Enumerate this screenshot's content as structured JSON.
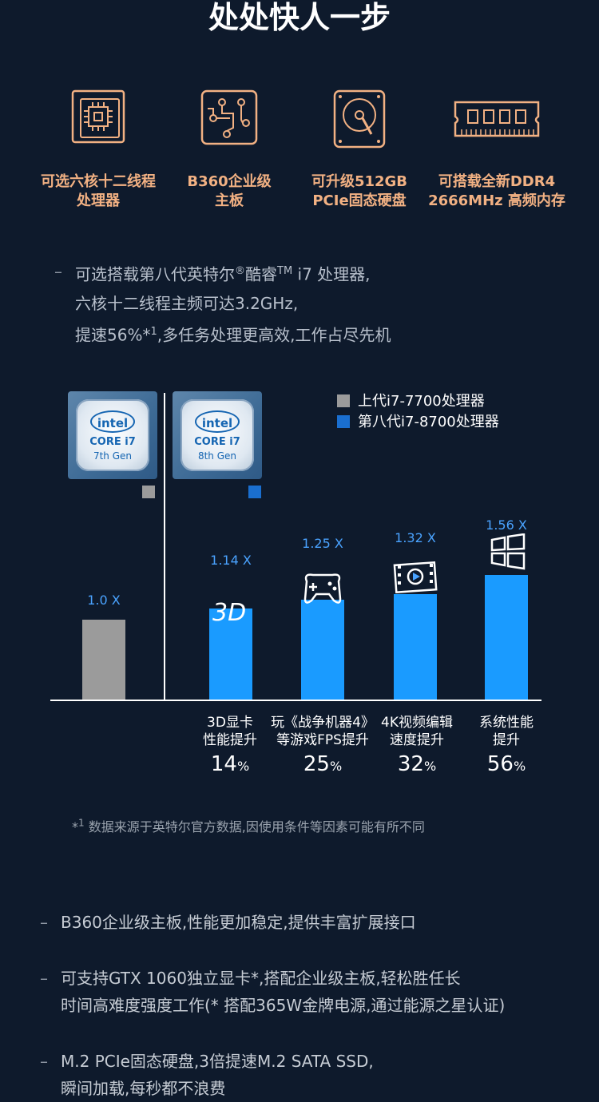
{
  "page_title": "处处快人一步",
  "features": [
    {
      "icon": "cpu-icon",
      "line1": "可选六核十二线程",
      "line2": "处理器"
    },
    {
      "icon": "motherboard-icon",
      "line1": "B360企业级",
      "line2": "主板"
    },
    {
      "icon": "hard-disk-icon",
      "line1": "可升级512GB",
      "line2": "PCIe固态硬盘"
    },
    {
      "icon": "ram-icon",
      "line1": "可搭载全新DDR4",
      "line2": "2666MHz 高频内存"
    }
  ],
  "processor_desc": {
    "dash": "–",
    "line1_a": "可选搭载第八代英特尔",
    "line1_reg": "®",
    "line1_b": "酷睿",
    "line1_tm": "TM",
    "line1_c": " i7 处理器,",
    "line2": "六核十二线程主频可达3.2GHz,",
    "line3_a": "提速56%*",
    "line3_sup": "1",
    "line3_b": ",多任务处理更高效,工作占尽先机"
  },
  "chips": [
    {
      "brand": "intel",
      "core": "CORE i7",
      "gen": "7th Gen"
    },
    {
      "brand": "intel",
      "core": "CORE i7",
      "gen": "8th Gen"
    }
  ],
  "legend": [
    {
      "label": "上代i7-7700处理器",
      "color": "#9b9b9b"
    },
    {
      "label": "第八代i7-8700处理器",
      "color": "#1a6fd0"
    }
  ],
  "chart_data": {
    "type": "bar",
    "categories": [
      "",
      "3D显卡性能提升",
      "玩《战争机器4》等游戏FPS提升",
      "4K视频编辑速度提升",
      "系统性能提升"
    ],
    "values": [
      1.0,
      1.14,
      1.25,
      1.32,
      1.56
    ],
    "value_labels": [
      "1.0 X",
      "1.14 X",
      "1.25 X",
      "1.32 X",
      "1.56 X"
    ],
    "bar_colors": [
      "#9b9b9b",
      "#1a9bff",
      "#1a9bff",
      "#1a9bff",
      "#1a9bff"
    ],
    "cat_lines": [
      [
        "",
        ""
      ],
      [
        "3D显卡",
        "性能提升"
      ],
      [
        "玩《战争机器4》",
        "等游戏FPS提升"
      ],
      [
        "4K视频编辑",
        "速度提升"
      ],
      [
        "系统性能",
        "提升"
      ]
    ],
    "percents": [
      "",
      "14",
      "25",
      "32",
      "56"
    ],
    "percent_unit": "%",
    "ylim": [
      0,
      1.56
    ]
  },
  "footnote": {
    "mark": "*",
    "sup": "1",
    "text": "数据来源于英特尔官方数据,因使用条件等因素可能有所不同"
  },
  "bullets": [
    {
      "dash": "–",
      "lines": [
        "B360企业级主板,性能更加稳定,提供丰富扩展接口"
      ]
    },
    {
      "dash": "–",
      "lines": [
        "可支持GTX 1060独立显卡*,搭配企业级主板,轻松胜任长",
        "时间高难度强度工作(* 搭配365W金牌电源,通过能源之星认证)"
      ]
    },
    {
      "dash": "–",
      "lines": [
        "M.2 PCIe固态硬盘,3倍提速M.2 SATA SSD,",
        "瞬间加载,每秒都不浪费"
      ]
    }
  ]
}
